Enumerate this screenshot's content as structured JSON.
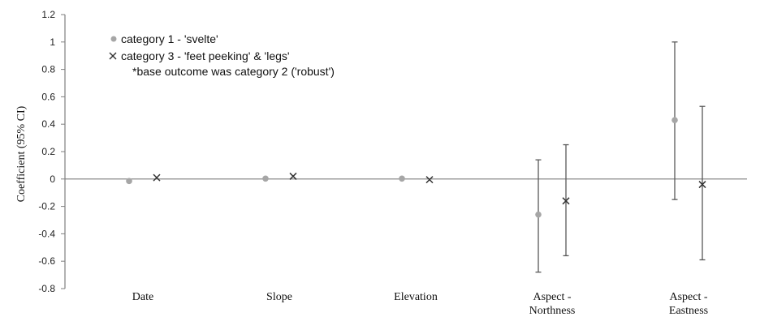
{
  "chart_data": {
    "type": "scatter",
    "ylabel": "Coefficient (95% CI)",
    "ylim": [
      -0.8,
      1.2
    ],
    "ytick_step": 0.2,
    "yticks": [
      "1.2",
      "1",
      "0.8",
      "0.6",
      "0.4",
      "0.2",
      "0",
      "-0.2",
      "-0.4",
      "-0.6",
      "-0.8"
    ],
    "categories": [
      [
        "Date"
      ],
      [
        "Slope"
      ],
      [
        "Elevation"
      ],
      [
        "Aspect -",
        "Northness"
      ],
      [
        "Aspect -",
        "Eastness"
      ]
    ],
    "series": [
      {
        "name": "category 1 - 'svelte'",
        "marker": "circle",
        "color": "#a6a6a6",
        "values": [
          -0.015,
          0.003,
          0.003,
          -0.26,
          0.43
        ],
        "ci_lower": [
          null,
          null,
          null,
          -0.68,
          -0.15
        ],
        "ci_upper": [
          null,
          null,
          null,
          0.14,
          1.0
        ]
      },
      {
        "name": "category 3 - 'feet peeking' & 'legs'",
        "marker": "x",
        "color": "#333333",
        "values": [
          0.01,
          0.02,
          -0.005,
          -0.16,
          -0.04
        ],
        "ci_lower": [
          null,
          null,
          null,
          -0.56,
          -0.59
        ],
        "ci_upper": [
          null,
          null,
          null,
          0.25,
          0.53
        ]
      }
    ],
    "note": "*base outcome was category 2 ('robust')",
    "legend_position": "top-left",
    "grid": false,
    "axis_color": "#7f7f7f",
    "errorbar_color": "#595959"
  }
}
